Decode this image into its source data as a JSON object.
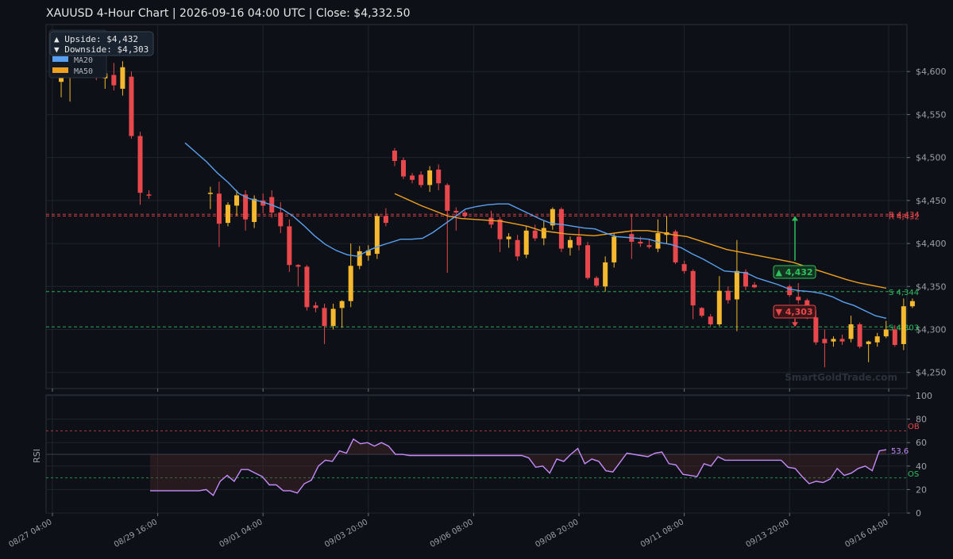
{
  "header": {
    "title": "XAUUSD  4-Hour Chart  |  2026-09-16 04:00 UTC  |  Close: $4,332.50"
  },
  "watermark": "SmartGoldTrade.com",
  "legend": {
    "upside": "▲ Upside:   $4,432",
    "downside": "▼ Downside: $4,303",
    "ma20": "MA20",
    "ma50": "MA50"
  },
  "colors": {
    "bull": "#f5b82e",
    "bear": "#e8484c",
    "ma20": "#5aa0f0",
    "ma50": "#f0a020",
    "rsi": "#c58af9",
    "support": "#2fbf5f",
    "resistance": "#e8484c",
    "background": "#0d1117",
    "grid": "#1e242c"
  },
  "chart_data": {
    "type": "candlestick",
    "price_axis": {
      "ylim": [
        4235,
        4650
      ],
      "ticks": [
        4250,
        4300,
        4350,
        4400,
        4450,
        4500,
        4550,
        4600
      ],
      "tick_labels": [
        "$4,250",
        "$4,300",
        "$4,350",
        "$4,400",
        "$4,450",
        "$4,500",
        "$4,550",
        "$4,600"
      ]
    },
    "x_axis": {
      "ticks": [
        0,
        12,
        24,
        36,
        48,
        60,
        72,
        84,
        95.3
      ],
      "labels": [
        "08/27 04:00",
        "08/29 16:00",
        "09/01 04:00",
        "09/03 20:00",
        "09/06 08:00",
        "09/08 20:00",
        "09/11 08:00",
        "09/13 20:00",
        "09/16 04:00"
      ]
    },
    "resistance": [
      {
        "value": 4434,
        "label": "R 4,434"
      },
      {
        "value": 4432,
        "label": "R 4,432"
      }
    ],
    "support": [
      {
        "value": 4344,
        "label": "S 4,344"
      },
      {
        "value": 4303,
        "label": "S 4,303"
      }
    ],
    "targets": {
      "upside": {
        "value": 4432,
        "label": "▲ 4,432"
      },
      "downside": {
        "value": 4303,
        "label": "▼ 4,303"
      }
    },
    "candles": [
      {
        "i": 0,
        "o": 4603,
        "h": 4612,
        "c": 4615,
        "l": 4598
      },
      {
        "i": 1,
        "o": 4588,
        "h": 4615,
        "c": 4608,
        "l": 4570
      },
      {
        "i": 2,
        "o": 4602,
        "h": 4612,
        "c": 4610,
        "l": 4565
      },
      {
        "i": 3,
        "o": 4608,
        "h": 4628,
        "c": 4620,
        "l": 4600
      },
      {
        "i": 4,
        "o": 4620,
        "h": 4630,
        "c": 4604,
        "l": 4598
      },
      {
        "i": 5,
        "o": 4614,
        "h": 4622,
        "c": 4596,
        "l": 4590
      },
      {
        "i": 6,
        "o": 4592,
        "h": 4605,
        "c": 4598,
        "l": 4580
      },
      {
        "i": 7,
        "o": 4596,
        "h": 4610,
        "c": 4584,
        "l": 4578
      },
      {
        "i": 8,
        "o": 4580,
        "h": 4612,
        "c": 4605,
        "l": 4572
      },
      {
        "i": 9,
        "o": 4594,
        "h": 4600,
        "c": 4525,
        "l": 4522
      },
      {
        "i": 10,
        "o": 4525,
        "h": 4530,
        "c": 4459,
        "l": 4445
      },
      {
        "i": 11,
        "o": 4457,
        "h": 4462,
        "c": 4456,
        "l": 4452
      },
      {
        "i": 18,
        "o": 4458,
        "h": 4466,
        "c": 4459,
        "l": 4440
      },
      {
        "i": 19,
        "o": 4458,
        "h": 4472,
        "c": 4423,
        "l": 4396
      },
      {
        "i": 20,
        "o": 4424,
        "h": 4448,
        "c": 4445,
        "l": 4420
      },
      {
        "i": 21,
        "o": 4444,
        "h": 4462,
        "c": 4456,
        "l": 4432
      },
      {
        "i": 22,
        "o": 4457,
        "h": 4462,
        "c": 4428,
        "l": 4415
      },
      {
        "i": 23,
        "o": 4425,
        "h": 4456,
        "c": 4452,
        "l": 4418
      },
      {
        "i": 24,
        "o": 4450,
        "h": 4458,
        "c": 4444,
        "l": 4435
      },
      {
        "i": 25,
        "o": 4454,
        "h": 4462,
        "c": 4436,
        "l": 4430
      },
      {
        "i": 26,
        "o": 4436,
        "h": 4448,
        "c": 4420,
        "l": 4412
      },
      {
        "i": 27,
        "o": 4420,
        "h": 4428,
        "c": 4375,
        "l": 4367
      },
      {
        "i": 28,
        "o": 4375,
        "h": 4376,
        "c": 4373,
        "l": 4350
      },
      {
        "i": 29,
        "o": 4373,
        "h": 4375,
        "c": 4326,
        "l": 4322
      },
      {
        "i": 30,
        "o": 4328,
        "h": 4332,
        "c": 4325,
        "l": 4320
      },
      {
        "i": 31,
        "o": 4325,
        "h": 4330,
        "c": 4304,
        "l": 4283
      },
      {
        "i": 32,
        "o": 4304,
        "h": 4330,
        "c": 4324,
        "l": 4300
      },
      {
        "i": 33,
        "o": 4325,
        "h": 4334,
        "c": 4333,
        "l": 4302
      },
      {
        "i": 34,
        "o": 4333,
        "h": 4400,
        "c": 4374,
        "l": 4326
      },
      {
        "i": 35,
        "o": 4374,
        "h": 4397,
        "c": 4391,
        "l": 4370
      },
      {
        "i": 36,
        "o": 4386,
        "h": 4398,
        "c": 4392,
        "l": 4380
      },
      {
        "i": 37,
        "o": 4388,
        "h": 4435,
        "c": 4432,
        "l": 4382
      },
      {
        "i": 38,
        "o": 4432,
        "h": 4441,
        "c": 4424,
        "l": 4420
      },
      {
        "i": 39,
        "o": 4508,
        "h": 4511,
        "c": 4496,
        "l": 4490
      },
      {
        "i": 40,
        "o": 4497,
        "h": 4500,
        "c": 4478,
        "l": 4475
      },
      {
        "i": 41,
        "o": 4479,
        "h": 4482,
        "c": 4474,
        "l": 4470
      },
      {
        "i": 42,
        "o": 4480,
        "h": 4484,
        "c": 4468,
        "l": 4465
      },
      {
        "i": 43,
        "o": 4468,
        "h": 4490,
        "c": 4485,
        "l": 4460
      },
      {
        "i": 44,
        "o": 4486,
        "h": 4492,
        "c": 4470,
        "l": 4462
      },
      {
        "i": 45,
        "o": 4468,
        "h": 4470,
        "c": 4438,
        "l": 4366
      },
      {
        "i": 46,
        "o": 4438,
        "h": 4442,
        "c": 4436,
        "l": 4415
      },
      {
        "i": 47,
        "o": 4436,
        "h": 4438,
        "c": 4432,
        "l": 4430
      },
      {
        "i": 50,
        "o": 4430,
        "h": 4438,
        "c": 4422,
        "l": 4418
      },
      {
        "i": 51,
        "o": 4428,
        "h": 4431,
        "c": 4405,
        "l": 4390
      },
      {
        "i": 52,
        "o": 4405,
        "h": 4412,
        "c": 4408,
        "l": 4395
      },
      {
        "i": 53,
        "o": 4404,
        "h": 4410,
        "c": 4385,
        "l": 4380
      },
      {
        "i": 54,
        "o": 4387,
        "h": 4420,
        "c": 4415,
        "l": 4383
      },
      {
        "i": 55,
        "o": 4415,
        "h": 4422,
        "c": 4406,
        "l": 4403
      },
      {
        "i": 56,
        "o": 4406,
        "h": 4426,
        "c": 4418,
        "l": 4398
      },
      {
        "i": 57,
        "o": 4421,
        "h": 4442,
        "c": 4440,
        "l": 4416
      },
      {
        "i": 58,
        "o": 4440,
        "h": 4442,
        "c": 4394,
        "l": 4390
      },
      {
        "i": 59,
        "o": 4395,
        "h": 4408,
        "c": 4404,
        "l": 4386
      },
      {
        "i": 60,
        "o": 4408,
        "h": 4418,
        "c": 4398,
        "l": 4392
      },
      {
        "i": 61,
        "o": 4398,
        "h": 4402,
        "c": 4360,
        "l": 4358
      },
      {
        "i": 62,
        "o": 4360,
        "h": 4362,
        "c": 4351,
        "l": 4349
      },
      {
        "i": 63,
        "o": 4350,
        "h": 4385,
        "c": 4378,
        "l": 4344
      },
      {
        "i": 64,
        "o": 4378,
        "h": 4412,
        "c": 4408,
        "l": 4372
      },
      {
        "i": 66,
        "o": 4411,
        "h": 4434,
        "c": 4402,
        "l": 4382
      },
      {
        "i": 67,
        "o": 4402,
        "h": 4408,
        "c": 4400,
        "l": 4396
      },
      {
        "i": 68,
        "o": 4398,
        "h": 4405,
        "c": 4396,
        "l": 4394
      },
      {
        "i": 69,
        "o": 4394,
        "h": 4428,
        "c": 4412,
        "l": 4390
      },
      {
        "i": 70,
        "o": 4410,
        "h": 4432,
        "c": 4413,
        "l": 4400
      },
      {
        "i": 71,
        "o": 4414,
        "h": 4416,
        "c": 4378,
        "l": 4376
      },
      {
        "i": 72,
        "o": 4376,
        "h": 4380,
        "c": 4368,
        "l": 4365
      },
      {
        "i": 73,
        "o": 4368,
        "h": 4370,
        "c": 4328,
        "l": 4312
      },
      {
        "i": 74,
        "o": 4325,
        "h": 4326,
        "c": 4316,
        "l": 4314
      },
      {
        "i": 75,
        "o": 4315,
        "h": 4318,
        "c": 4306,
        "l": 4304
      },
      {
        "i": 76,
        "o": 4306,
        "h": 4362,
        "c": 4345,
        "l": 4304
      },
      {
        "i": 77,
        "o": 4345,
        "h": 4350,
        "c": 4334,
        "l": 4330
      },
      {
        "i": 78,
        "o": 4335,
        "h": 4404,
        "c": 4368,
        "l": 4298
      },
      {
        "i": 79,
        "o": 4367,
        "h": 4370,
        "c": 4350,
        "l": 4346
      },
      {
        "i": 80,
        "o": 4352,
        "h": 4355,
        "c": 4349,
        "l": 4348
      },
      {
        "i": 84,
        "o": 4350,
        "h": 4352,
        "c": 4340,
        "l": 4338
      },
      {
        "i": 85,
        "o": 4338,
        "h": 4354,
        "c": 4334,
        "l": 4330
      },
      {
        "i": 86,
        "o": 4334,
        "h": 4336,
        "c": 4316,
        "l": 4312
      },
      {
        "i": 87,
        "o": 4314,
        "h": 4322,
        "c": 4285,
        "l": 4282
      },
      {
        "i": 88,
        "o": 4289,
        "h": 4300,
        "c": 4284,
        "l": 4256
      },
      {
        "i": 89,
        "o": 4286,
        "h": 4292,
        "c": 4289,
        "l": 4280
      },
      {
        "i": 90,
        "o": 4289,
        "h": 4294,
        "c": 4286,
        "l": 4282
      },
      {
        "i": 91,
        "o": 4289,
        "h": 4316,
        "c": 4306,
        "l": 4285
      },
      {
        "i": 92,
        "o": 4306,
        "h": 4308,
        "c": 4280,
        "l": 4278
      },
      {
        "i": 93,
        "o": 4283,
        "h": 4287,
        "c": 4286,
        "l": 4262
      },
      {
        "i": 94,
        "o": 4285,
        "h": 4296,
        "c": 4292,
        "l": 4280
      },
      {
        "i": 95,
        "o": 4292,
        "h": 4310,
        "c": 4300,
        "l": 4290
      },
      {
        "i": 96,
        "o": 4300,
        "h": 4305,
        "c": 4282,
        "l": 4280
      },
      {
        "i": 97,
        "o": 4283,
        "h": 4336,
        "c": 4327,
        "l": 4276
      },
      {
        "i": 98,
        "o": 4327,
        "h": 4336,
        "c": 4333,
        "l": 4325
      }
    ],
    "ma20": [
      [
        13,
        4517
      ],
      [
        14,
        4506
      ],
      [
        15,
        4495
      ],
      [
        16,
        4482
      ],
      [
        17,
        4471
      ],
      [
        18,
        4458
      ],
      [
        19,
        4452
      ],
      [
        20,
        4449
      ],
      [
        21,
        4445
      ],
      [
        22,
        4440
      ],
      [
        23,
        4432
      ],
      [
        24,
        4421
      ],
      [
        25,
        4409
      ],
      [
        26,
        4399
      ],
      [
        27,
        4392
      ],
      [
        28,
        4387
      ],
      [
        29,
        4385
      ],
      [
        30,
        4392
      ],
      [
        31,
        4397
      ],
      [
        32,
        4401
      ],
      [
        33,
        4405
      ],
      [
        34,
        4405
      ],
      [
        35,
        4406
      ],
      [
        36,
        4413
      ],
      [
        37,
        4422
      ],
      [
        38,
        4431
      ],
      [
        39,
        4440
      ],
      [
        40,
        4443
      ],
      [
        41,
        4445
      ],
      [
        42,
        4446
      ],
      [
        43,
        4446
      ],
      [
        44,
        4440
      ],
      [
        45,
        4434
      ],
      [
        46,
        4428
      ],
      [
        47,
        4423
      ],
      [
        48,
        4422
      ],
      [
        49,
        4420
      ],
      [
        50,
        4418
      ],
      [
        51,
        4417
      ],
      [
        52,
        4412
      ],
      [
        53,
        4408
      ],
      [
        54,
        4407
      ],
      [
        55,
        4406
      ],
      [
        56,
        4405
      ],
      [
        57,
        4401
      ],
      [
        58,
        4399
      ],
      [
        59,
        4395
      ],
      [
        60,
        4388
      ],
      [
        61,
        4382
      ],
      [
        62,
        4375
      ],
      [
        63,
        4368
      ],
      [
        64,
        4367
      ],
      [
        65,
        4366
      ],
      [
        66,
        4360
      ],
      [
        67,
        4356
      ],
      [
        68,
        4352
      ],
      [
        69,
        4347
      ],
      [
        70,
        4345
      ],
      [
        71,
        4344
      ],
      [
        72,
        4342
      ],
      [
        73,
        4338
      ],
      [
        74,
        4332
      ],
      [
        75,
        4328
      ],
      [
        76,
        4322
      ],
      [
        77,
        4316
      ],
      [
        78,
        4313
      ]
    ],
    "ma50": [
      [
        39,
        4458
      ],
      [
        40,
        4451
      ],
      [
        41,
        4444
      ],
      [
        42,
        4438
      ],
      [
        43,
        4432
      ],
      [
        44,
        4429
      ],
      [
        45,
        4428
      ],
      [
        46,
        4427
      ],
      [
        47,
        4426
      ],
      [
        48,
        4423
      ],
      [
        49,
        4420
      ],
      [
        50,
        4415
      ],
      [
        51,
        4413
      ],
      [
        52,
        4411
      ],
      [
        53,
        4410
      ],
      [
        54,
        4409
      ],
      [
        55,
        4411
      ],
      [
        56,
        4413
      ],
      [
        57,
        4415
      ],
      [
        58,
        4415
      ],
      [
        59,
        4413
      ],
      [
        60,
        4410
      ],
      [
        61,
        4408
      ],
      [
        62,
        4403
      ],
      [
        63,
        4398
      ],
      [
        64,
        4393
      ],
      [
        65,
        4390
      ],
      [
        66,
        4387
      ],
      [
        67,
        4384
      ],
      [
        68,
        4381
      ],
      [
        69,
        4378
      ],
      [
        70,
        4373
      ],
      [
        71,
        4368
      ],
      [
        72,
        4363
      ],
      [
        73,
        4358
      ],
      [
        74,
        4354
      ],
      [
        75,
        4351
      ],
      [
        76,
        4348
      ]
    ],
    "rsi": {
      "label": "RSI",
      "ylim": [
        0,
        100
      ],
      "ticks": [
        0,
        20,
        40,
        60,
        80,
        100
      ],
      "overbought": 70,
      "oversold": 30,
      "ob_label": "OB",
      "os_label": "OS",
      "last_value": "53.6",
      "values": [
        [
          11,
          19
        ],
        [
          18,
          19
        ],
        [
          19,
          20
        ],
        [
          20,
          15
        ],
        [
          21,
          27
        ],
        [
          22,
          32
        ],
        [
          23,
          27
        ],
        [
          24,
          37
        ],
        [
          25,
          37
        ],
        [
          26,
          34
        ],
        [
          27,
          31
        ],
        [
          28,
          24
        ],
        [
          29,
          24
        ],
        [
          30,
          19
        ],
        [
          31,
          19
        ],
        [
          32,
          17
        ],
        [
          33,
          25
        ],
        [
          34,
          28
        ],
        [
          35,
          40
        ],
        [
          36,
          45
        ],
        [
          37,
          44
        ],
        [
          38,
          53
        ],
        [
          39,
          51
        ],
        [
          40,
          63
        ],
        [
          41,
          59
        ],
        [
          42,
          60
        ],
        [
          43,
          57
        ],
        [
          44,
          60
        ],
        [
          45,
          57
        ],
        [
          46,
          50
        ],
        [
          47,
          50
        ],
        [
          48,
          49
        ],
        [
          53,
          49
        ],
        [
          64,
          49
        ],
        [
          65,
          47
        ],
        [
          66,
          39
        ],
        [
          67,
          40
        ],
        [
          68,
          34
        ],
        [
          69,
          46
        ],
        [
          70,
          44
        ],
        [
          71,
          50
        ],
        [
          72,
          55
        ],
        [
          73,
          42
        ],
        [
          74,
          46
        ],
        [
          75,
          44
        ],
        [
          76,
          36
        ],
        [
          77,
          35
        ],
        [
          78,
          43
        ],
        [
          79,
          51
        ],
        [
          80,
          50
        ],
        [
          81,
          49
        ],
        [
          82,
          48
        ],
        [
          83,
          51
        ],
        [
          84,
          52
        ],
        [
          85,
          42
        ],
        [
          86,
          41
        ],
        [
          87,
          33
        ],
        [
          88,
          32
        ],
        [
          89,
          31
        ],
        [
          90,
          42
        ],
        [
          91,
          40
        ],
        [
          92,
          48
        ],
        [
          93,
          45
        ],
        [
          101,
          45
        ],
        [
          102,
          39
        ],
        [
          103,
          38
        ],
        [
          104,
          31
        ],
        [
          105,
          25
        ],
        [
          106,
          27
        ],
        [
          107,
          26
        ],
        [
          108,
          29
        ],
        [
          109,
          38
        ],
        [
          110,
          32
        ],
        [
          111,
          34
        ],
        [
          112,
          38
        ],
        [
          113,
          40
        ],
        [
          114,
          36
        ],
        [
          115,
          53
        ],
        [
          116,
          54
        ]
      ]
    }
  }
}
